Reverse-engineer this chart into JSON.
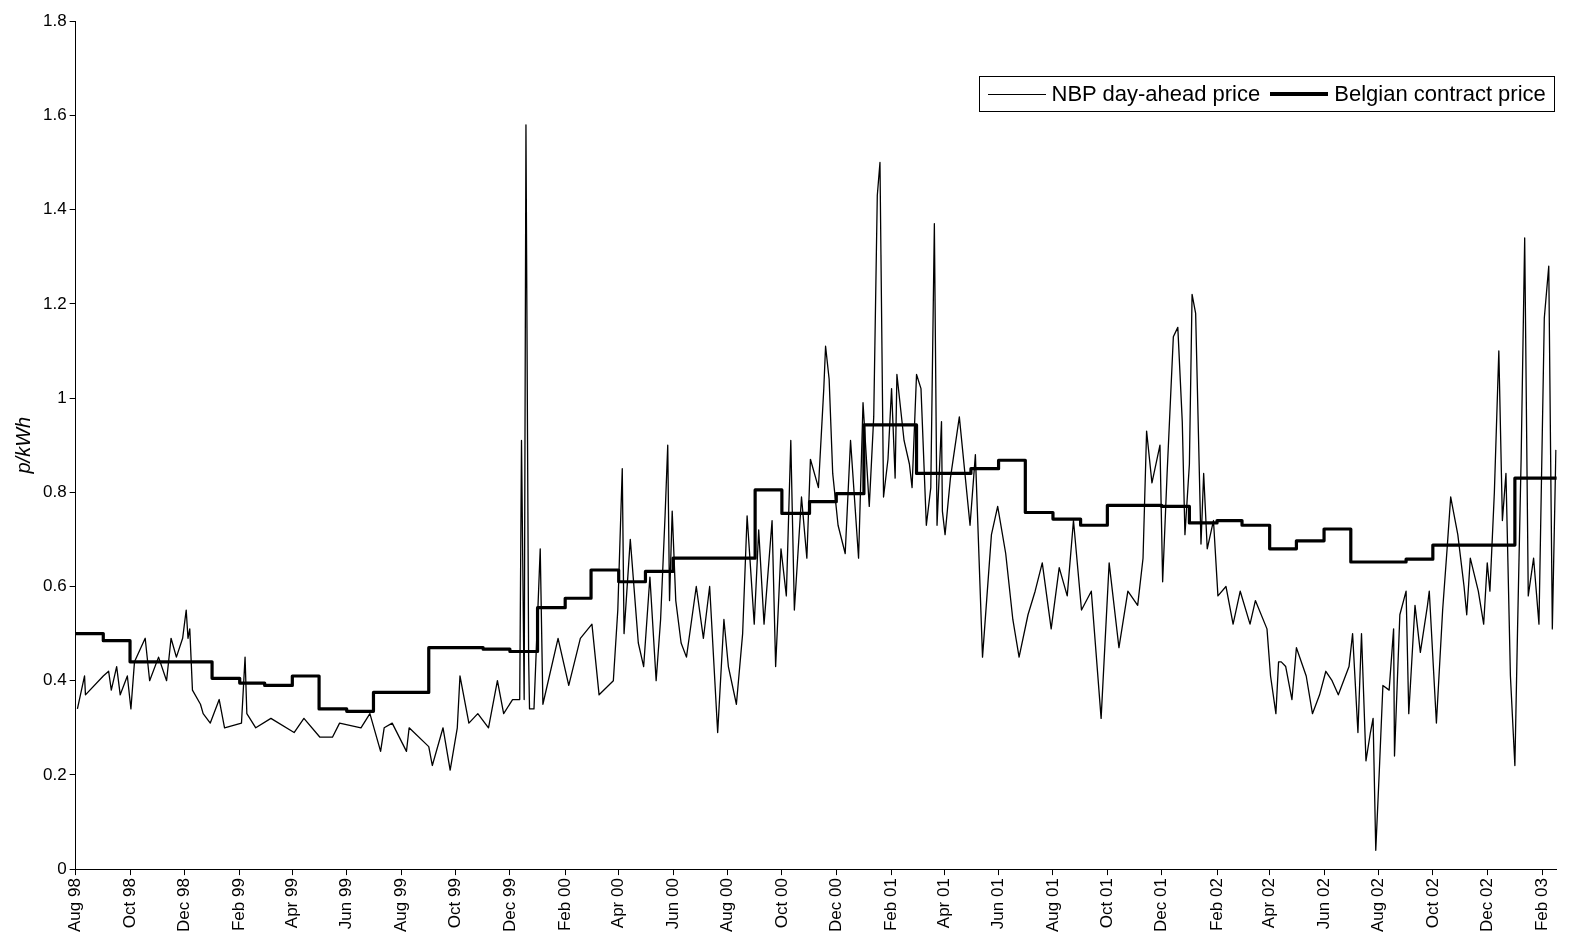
{
  "chart_data": {
    "type": "line",
    "ylabel": "p/kWh",
    "xlim": [
      "1998-08-01",
      "2003-02-17"
    ],
    "ylim": [
      0,
      1.8
    ],
    "yticks": [
      0,
      0.2,
      0.4,
      0.6,
      0.8,
      1,
      1.2,
      1.4,
      1.6,
      1.8
    ],
    "xticks": [
      {
        "value": "1998-08-01",
        "label": "Aug 98"
      },
      {
        "value": "1998-10-01",
        "label": "Oct 98"
      },
      {
        "value": "1998-12-01",
        "label": "Dec 98"
      },
      {
        "value": "1999-02-01",
        "label": "Feb 99"
      },
      {
        "value": "1999-04-01",
        "label": "Apr 99"
      },
      {
        "value": "1999-06-01",
        "label": "Jun 99"
      },
      {
        "value": "1999-08-01",
        "label": "Aug 99"
      },
      {
        "value": "1999-10-01",
        "label": "Oct 99"
      },
      {
        "value": "1999-12-01",
        "label": "Dec 99"
      },
      {
        "value": "2000-02-01",
        "label": "Feb 00"
      },
      {
        "value": "2000-04-01",
        "label": "Apr 00"
      },
      {
        "value": "2000-06-01",
        "label": "Jun 00"
      },
      {
        "value": "2000-08-01",
        "label": "Aug 00"
      },
      {
        "value": "2000-10-01",
        "label": "Oct 00"
      },
      {
        "value": "2000-12-01",
        "label": "Dec 00"
      },
      {
        "value": "2001-02-01",
        "label": "Feb 01"
      },
      {
        "value": "2001-04-01",
        "label": "Apr 01"
      },
      {
        "value": "2001-06-01",
        "label": "Jun 01"
      },
      {
        "value": "2001-08-01",
        "label": "Aug 01"
      },
      {
        "value": "2001-10-01",
        "label": "Oct 01"
      },
      {
        "value": "2001-12-01",
        "label": "Dec 01"
      },
      {
        "value": "2002-02-01",
        "label": "Feb 02"
      },
      {
        "value": "2002-04-01",
        "label": "Apr 02"
      },
      {
        "value": "2002-06-01",
        "label": "Jun 02"
      },
      {
        "value": "2002-08-01",
        "label": "Aug 02"
      },
      {
        "value": "2002-10-01",
        "label": "Oct 02"
      },
      {
        "value": "2002-12-01",
        "label": "Dec 02"
      },
      {
        "value": "2003-02-01",
        "label": "Feb 03"
      }
    ],
    "grid": false,
    "legend": "top right",
    "marker": "none",
    "series": [
      {
        "name": "NBP day-ahead price",
        "type": "line",
        "color": "#000000",
        "x": [
          "1998-08-03",
          "1998-08-11",
          "1998-08-12",
          "1998-09-01",
          "1998-09-07",
          "1998-09-10",
          "1998-09-16",
          "1998-09-20",
          "1998-09-28",
          "1998-10-02",
          "1998-10-06",
          "1998-10-18",
          "1998-10-23",
          "1998-11-02",
          "1998-11-11",
          "1998-11-16",
          "1998-11-22",
          "1998-11-29",
          "1998-12-03",
          "1998-12-05",
          "1998-12-07",
          "1998-12-10",
          "1998-12-19",
          "1998-12-22",
          "1998-12-30",
          "1999-01-09",
          "1999-01-15",
          "1999-02-03",
          "1999-02-07",
          "1999-02-09",
          "1999-02-19",
          "1999-03-08",
          "1999-04-03",
          "1999-04-14",
          "1999-05-02",
          "1999-05-16",
          "1999-05-24",
          "1999-06-17",
          "1999-06-27",
          "1999-07-09",
          "1999-07-13",
          "1999-07-22",
          "1999-08-07",
          "1999-08-10",
          "1999-09-01",
          "1999-09-05",
          "1999-09-17",
          "1999-09-25",
          "1999-10-03",
          "1999-10-06",
          "1999-10-16",
          "1999-10-26",
          "1999-11-07",
          "1999-11-17",
          "1999-11-24",
          "1999-12-04",
          "1999-12-12",
          "1999-12-14",
          "1999-12-17",
          "1999-12-19",
          "1999-12-22",
          "1999-12-23",
          "1999-12-28",
          "2000-01-04",
          "2000-01-07",
          "2000-01-24",
          "2000-02-05",
          "2000-02-18",
          "2000-03-02",
          "2000-03-10",
          "2000-03-26",
          "2000-03-31",
          "2000-04-05",
          "2000-04-07",
          "2000-04-14",
          "2000-04-23",
          "2000-04-29",
          "2000-05-06",
          "2000-05-13",
          "2000-05-18",
          "2000-05-23",
          "2000-05-26",
          "2000-05-28",
          "2000-05-31",
          "2000-06-04",
          "2000-06-10",
          "2000-06-16",
          "2000-06-27",
          "2000-07-05",
          "2000-07-12",
          "2000-07-21",
          "2000-07-28",
          "2000-08-02",
          "2000-08-11",
          "2000-08-18",
          "2000-08-23",
          "2000-08-31",
          "2000-09-05",
          "2000-09-11",
          "2000-09-20",
          "2000-09-24",
          "2000-09-30",
          "2000-10-06",
          "2000-10-11",
          "2000-10-15",
          "2000-10-23",
          "2000-10-29",
          "2000-11-02",
          "2000-11-11",
          "2000-11-17",
          "2000-11-19",
          "2000-11-23",
          "2000-11-27",
          "2000-12-03",
          "2000-12-11",
          "2000-12-17",
          "2000-12-26",
          "2000-12-31",
          "2001-01-07",
          "2001-01-12",
          "2001-01-16",
          "2001-01-19",
          "2001-01-23",
          "2001-01-28",
          "2001-02-01",
          "2001-02-05",
          "2001-02-07",
          "2001-02-15",
          "2001-02-21",
          "2001-02-24",
          "2001-03-01",
          "2001-03-06",
          "2001-03-12",
          "2001-03-17",
          "2001-03-21",
          "2001-03-24",
          "2001-03-29",
          "2001-03-30",
          "2001-04-02",
          "2001-04-08",
          "2001-04-18",
          "2001-04-30",
          "2001-05-06",
          "2001-05-14",
          "2001-05-24",
          "2001-05-31",
          "2001-06-09",
          "2001-06-17",
          "2001-06-24",
          "2001-07-04",
          "2001-07-12",
          "2001-07-20",
          "2001-07-30",
          "2001-08-08",
          "2001-08-17",
          "2001-08-24",
          "2001-09-02",
          "2001-09-13",
          "2001-09-24",
          "2001-10-03",
          "2001-10-14",
          "2001-10-24",
          "2001-11-04",
          "2001-11-10",
          "2001-11-14",
          "2001-11-20",
          "2001-11-29",
          "2001-12-02",
          "2001-12-07",
          "2001-12-14",
          "2001-12-19",
          "2001-12-24",
          "2001-12-27",
          "2002-01-01",
          "2002-01-04",
          "2002-01-08",
          "2002-01-14",
          "2002-01-17",
          "2002-01-21",
          "2002-01-28",
          "2002-02-02",
          "2002-02-11",
          "2002-02-19",
          "2002-02-27",
          "2002-03-10",
          "2002-03-16",
          "2002-03-29",
          "2002-04-02",
          "2002-04-08",
          "2002-04-11",
          "2002-04-14",
          "2002-04-19",
          "2002-04-26",
          "2002-05-01",
          "2002-05-12",
          "2002-05-19",
          "2002-05-27",
          "2002-06-03",
          "2002-06-10",
          "2002-06-17",
          "2002-06-29",
          "2002-07-03",
          "2002-07-09",
          "2002-07-13",
          "2002-07-18",
          "2002-07-23",
          "2002-07-26",
          "2002-07-29",
          "2002-08-02",
          "2002-08-06",
          "2002-08-13",
          "2002-08-18",
          "2002-08-19",
          "2002-08-25",
          "2002-09-01",
          "2002-09-04",
          "2002-09-11",
          "2002-09-17",
          "2002-09-25",
          "2002-09-27",
          "2002-10-05",
          "2002-10-12",
          "2002-10-17",
          "2002-10-21",
          "2002-10-29",
          "2002-11-05",
          "2002-11-08",
          "2002-11-12",
          "2002-11-21",
          "2002-11-27",
          "2002-12-01",
          "2002-12-04",
          "2002-12-09",
          "2002-12-14",
          "2002-12-18",
          "2002-12-22",
          "2002-12-27",
          "2003-01-01",
          "2003-01-04",
          "2003-01-08",
          "2003-01-12",
          "2003-01-16",
          "2003-01-22",
          "2003-01-28",
          "2003-02-03",
          "2003-02-08",
          "2003-02-12",
          "2003-02-16"
        ],
        "values": [
          0.34,
          0.41,
          0.37,
          0.41,
          0.42,
          0.38,
          0.43,
          0.37,
          0.41,
          0.34,
          0.44,
          0.49,
          0.4,
          0.45,
          0.4,
          0.49,
          0.45,
          0.49,
          0.55,
          0.49,
          0.51,
          0.38,
          0.35,
          0.33,
          0.31,
          0.36,
          0.3,
          0.31,
          0.45,
          0.33,
          0.3,
          0.32,
          0.29,
          0.32,
          0.28,
          0.28,
          0.31,
          0.3,
          0.33,
          0.25,
          0.3,
          0.31,
          0.25,
          0.3,
          0.26,
          0.22,
          0.3,
          0.21,
          0.3,
          0.41,
          0.31,
          0.33,
          0.3,
          0.4,
          0.33,
          0.36,
          0.36,
          0.91,
          0.36,
          1.58,
          0.45,
          0.34,
          0.34,
          0.68,
          0.35,
          0.49,
          0.39,
          0.49,
          0.52,
          0.37,
          0.4,
          0.55,
          0.85,
          0.5,
          0.7,
          0.48,
          0.43,
          0.62,
          0.4,
          0.53,
          0.75,
          0.9,
          0.57,
          0.76,
          0.57,
          0.48,
          0.45,
          0.6,
          0.49,
          0.6,
          0.29,
          0.53,
          0.43,
          0.35,
          0.5,
          0.75,
          0.52,
          0.72,
          0.52,
          0.74,
          0.43,
          0.68,
          0.58,
          0.91,
          0.55,
          0.79,
          0.66,
          0.87,
          0.81,
          1.02,
          1.11,
          1.04,
          0.84,
          0.73,
          0.67,
          0.91,
          0.66,
          0.99,
          0.77,
          0.96,
          1.43,
          1.5,
          0.79,
          0.87,
          1.02,
          0.83,
          1.05,
          0.91,
          0.86,
          0.81,
          1.05,
          1.02,
          0.73,
          0.81,
          1.37,
          0.73,
          0.95,
          0.76,
          0.71,
          0.83,
          0.96,
          0.73,
          0.88,
          0.45,
          0.71,
          0.77,
          0.67,
          0.53,
          0.45,
          0.54,
          0.59,
          0.65,
          0.51,
          0.64,
          0.58,
          0.74,
          0.55,
          0.59,
          0.32,
          0.65,
          0.47,
          0.59,
          0.56,
          0.66,
          0.93,
          0.82,
          0.9,
          0.61,
          0.84,
          1.13,
          1.15,
          0.95,
          0.71,
          0.86,
          1.22,
          1.18,
          0.69,
          0.84,
          0.68,
          0.74,
          0.58,
          0.6,
          0.52,
          0.59,
          0.52,
          0.57,
          0.51,
          0.41,
          0.33,
          0.44,
          0.44,
          0.43,
          0.36,
          0.47,
          0.41,
          0.33,
          0.37,
          0.42,
          0.4,
          0.37,
          0.43,
          0.5,
          0.29,
          0.5,
          0.23,
          0.29,
          0.32,
          0.04,
          0.21,
          0.39,
          0.38,
          0.51,
          0.24,
          0.54,
          0.59,
          0.33,
          0.56,
          0.46,
          0.56,
          0.59,
          0.31,
          0.55,
          0.68,
          0.79,
          0.71,
          0.6,
          0.54,
          0.66,
          0.59,
          0.52,
          0.65,
          0.59,
          0.8,
          1.1,
          0.74,
          0.84,
          0.41,
          0.22,
          0.51,
          0.87,
          1.34,
          0.58,
          0.66,
          0.52,
          1.17,
          1.28,
          0.51,
          0.89
        ]
      },
      {
        "name": "Belgian contract price",
        "type": "step",
        "color": "#000000",
        "x": [
          "1998-08-01",
          "1998-09-01",
          "1998-10-01",
          "1999-01-01",
          "1999-02-01",
          "1999-03-01",
          "1999-04-01",
          "1999-05-01",
          "1999-06-01",
          "1999-07-01",
          "1999-09-01",
          "1999-11-01",
          "1999-12-01",
          "2000-01-01",
          "2000-02-01",
          "2000-03-01",
          "2000-04-01",
          "2000-05-01",
          "2000-06-01",
          "2000-09-01",
          "2000-10-01",
          "2000-11-01",
          "2000-12-01",
          "2001-01-01",
          "2001-03-01",
          "2001-05-01",
          "2001-06-01",
          "2001-07-01",
          "2001-08-01",
          "2001-09-01",
          "2001-10-01",
          "2001-12-01",
          "2002-01-01",
          "2002-02-01",
          "2002-03-01",
          "2002-04-01",
          "2002-05-01",
          "2002-06-01",
          "2002-07-01",
          "2002-09-01",
          "2002-10-01",
          "2003-01-01",
          "2003-02-17"
        ],
        "values": [
          0.5,
          0.485,
          0.44,
          0.405,
          0.395,
          0.39,
          0.41,
          0.34,
          0.335,
          0.375,
          0.47,
          0.467,
          0.462,
          0.555,
          0.575,
          0.635,
          0.61,
          0.632,
          0.66,
          0.805,
          0.755,
          0.78,
          0.797,
          0.943,
          0.84,
          0.85,
          0.868,
          0.757,
          0.743,
          0.73,
          0.772,
          0.77,
          0.735,
          0.74,
          0.73,
          0.68,
          0.697,
          0.722,
          0.652,
          0.658,
          0.688,
          0.83,
          0.83
        ]
      }
    ]
  }
}
